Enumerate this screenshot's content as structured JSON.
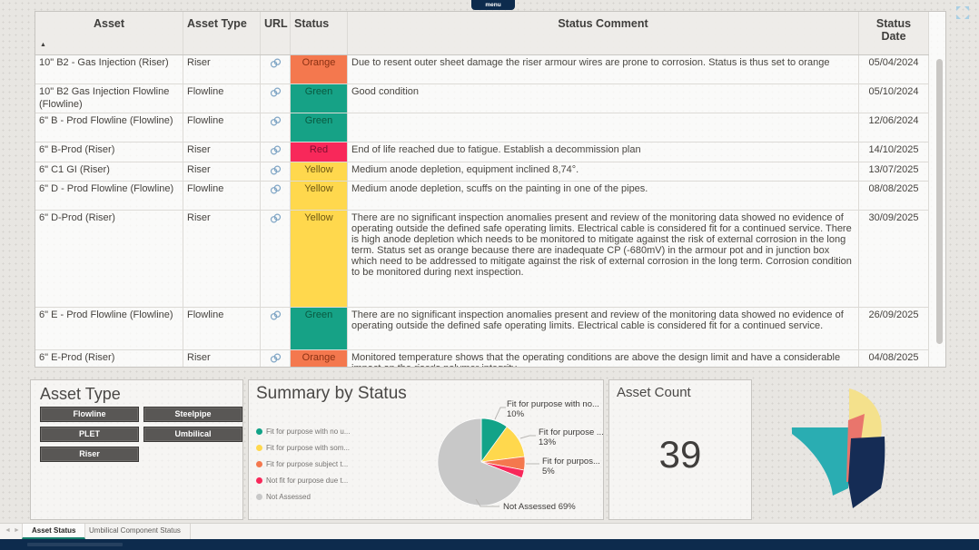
{
  "menu": {
    "label": "menu"
  },
  "table": {
    "columns": [
      "Asset",
      "Asset Type",
      "URL",
      "Status",
      "Status Comment",
      "Status Date"
    ],
    "rows": [
      {
        "asset": "10\" B2 - Gas Injection (Riser)",
        "type": "Riser",
        "status": "Orange",
        "comment": "Due to resent outer sheet damage the riser armour wires are prone to corrosion. Status is thus set to orange",
        "date": "05/04/2024"
      },
      {
        "asset": "10\" B2 Gas Injection Flowline (Flowline)",
        "type": "Flowline",
        "status": "Green",
        "comment": "Good condition",
        "date": "05/10/2024"
      },
      {
        "asset": "6\" B - Prod Flowline (Flowline)",
        "type": "Flowline",
        "status": "Green",
        "comment": "",
        "date": "12/06/2024"
      },
      {
        "asset": "6\" B-Prod (Riser)",
        "type": "Riser",
        "status": "Red",
        "comment": "End of life reached due to fatigue. Establish a decommission plan",
        "date": "14/10/2025"
      },
      {
        "asset": "6\" C1 GI (Riser)",
        "type": "Riser",
        "status": "Yellow",
        "comment": "Medium anode depletion, equipment inclined 8,74°.",
        "date": "13/07/2025"
      },
      {
        "asset": "6\" D - Prod Flowline (Flowline)",
        "type": "Flowline",
        "status": "Yellow",
        "comment": "Medium anode depletion, scuffs on the painting in one of the pipes.",
        "date": "08/08/2025"
      },
      {
        "asset": "6\" D-Prod (Riser)",
        "type": "Riser",
        "status": "Yellow",
        "comment": "There are no significant inspection anomalies present and review of the monitoring data showed no evidence of operating outside the defined safe operating limits. Electrical cable is considered fit for a continued service. There is high anode depletion which needs to be monitored to mitigate against the risk of external corrosion in the long term. Status set as orange because there are inadequate CP (-680mV) in the armour pot and in junction box which need to be addressed to mitigate against the risk of external corrosion in the long term. Corrosion condition to be monitored during next inspection.",
        "date": "30/09/2025"
      },
      {
        "asset": "6\" E - Prod Flowline (Flowline)",
        "type": "Flowline",
        "status": "Green",
        "comment": "There are no significant inspection anomalies present and review of the monitoring data showed no evidence of operating outside the defined safe operating limits. Electrical cable is considered fit for a continued service.",
        "date": "26/09/2025"
      },
      {
        "asset": "6\" E-Prod (Riser)",
        "type": "Riser",
        "status": "Orange",
        "comment": "Monitored temperature shows that the operating conditions are above the design limit and have a considerable impact on the riser's polymer integrity.",
        "date": "04/08/2025"
      }
    ],
    "status_colors": {
      "Orange": {
        "bg": "#F4784E",
        "fg": "#8A3113"
      },
      "Green": {
        "bg": "#16A286",
        "fg": "#0A5940"
      },
      "Red": {
        "bg": "#F8285A",
        "fg": "#7E1030"
      },
      "Yellow": {
        "bg": "#FFD84D",
        "fg": "#6C5712"
      }
    }
  },
  "asset_type_filter": {
    "title": "Asset Type",
    "buttons": [
      "Flowline",
      "Steelpipe",
      "PLET",
      "Umbilical",
      "Riser"
    ]
  },
  "chart_data": {
    "type": "pie",
    "title": "Summary by Status",
    "legend_position": "left",
    "slices": [
      {
        "label": "Fit for purpose with no u...",
        "value": 10,
        "color": "#12A388"
      },
      {
        "label": "Fit for purpose with som...",
        "value": 13,
        "color": "#FFD84D"
      },
      {
        "label": "Fit for purpose subject t...",
        "value": 5,
        "color": "#F4784E"
      },
      {
        "label": "Not fit for purpose due t...",
        "value": 3,
        "color": "#F8285A"
      },
      {
        "label": "Not Assessed",
        "value": 69,
        "color": "#C8C8C8"
      }
    ],
    "callouts": [
      {
        "line1": "Fit for purpose with no...",
        "line2": "10%"
      },
      {
        "line1": "Fit for purpose ...",
        "line2": "13%"
      },
      {
        "line1": "Fit for purpos...",
        "line2": "5%"
      },
      {
        "line1": "Not Assessed 69%",
        "line2": ""
      }
    ]
  },
  "asset_count": {
    "title": "Asset Count",
    "value": "39"
  },
  "tabs": {
    "prev": "◄",
    "next": "►",
    "items": [
      {
        "label": "Asset Status"
      },
      {
        "label": "Umbilical Component Status"
      }
    ]
  }
}
